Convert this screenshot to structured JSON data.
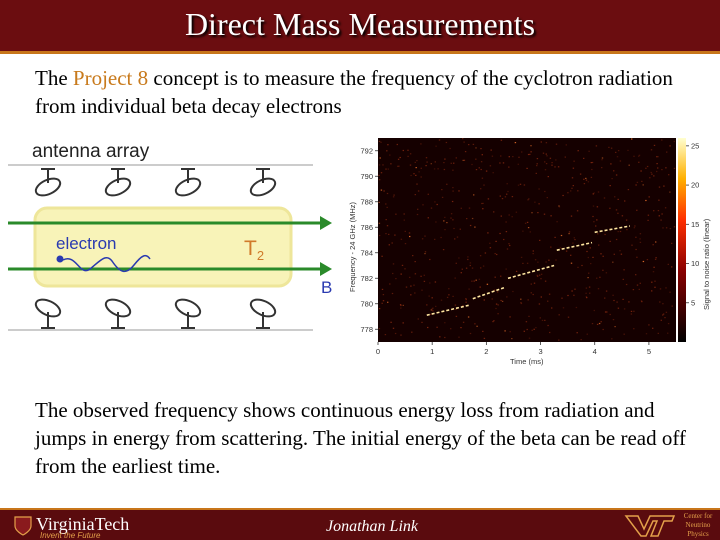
{
  "title": "Direct Mass Measurements",
  "intro": {
    "before": "The ",
    "highlight": "Project 8",
    "after": " concept is to measure the frequency of the cyclotron radiation from individual beta decay electrons"
  },
  "diagram": {
    "antenna_label": "antenna array",
    "electron_label": "electron",
    "gas_label": "T",
    "gas_subscript": "2",
    "field_label": "B"
  },
  "plot": {
    "xlabel": "Time (ms)",
    "ylabel": "Frequency - 24 GHz (MHz)",
    "colorbar_label": "Signal to noise ratio (linear)",
    "x_ticks": [
      "0",
      "1",
      "2",
      "3",
      "4",
      "5"
    ],
    "y_ticks": [
      "778",
      "780",
      "782",
      "784",
      "786",
      "788",
      "790",
      "792"
    ],
    "cb_ticks": [
      "5",
      "10",
      "15",
      "20",
      "25"
    ],
    "colors": {
      "background": "#150000",
      "track": "#ffe6a0",
      "noise": "#8a2a10"
    }
  },
  "outro": "The observed frequency shows continuous energy loss from radiation and jumps in energy from scattering.  The initial energy of the beta can be read off from the earliest time.",
  "footer": {
    "university": "VirginiaTech",
    "tagline": "Invent the Future",
    "author": "Jonathan Link",
    "center": "Center for Neutrino Physics"
  }
}
